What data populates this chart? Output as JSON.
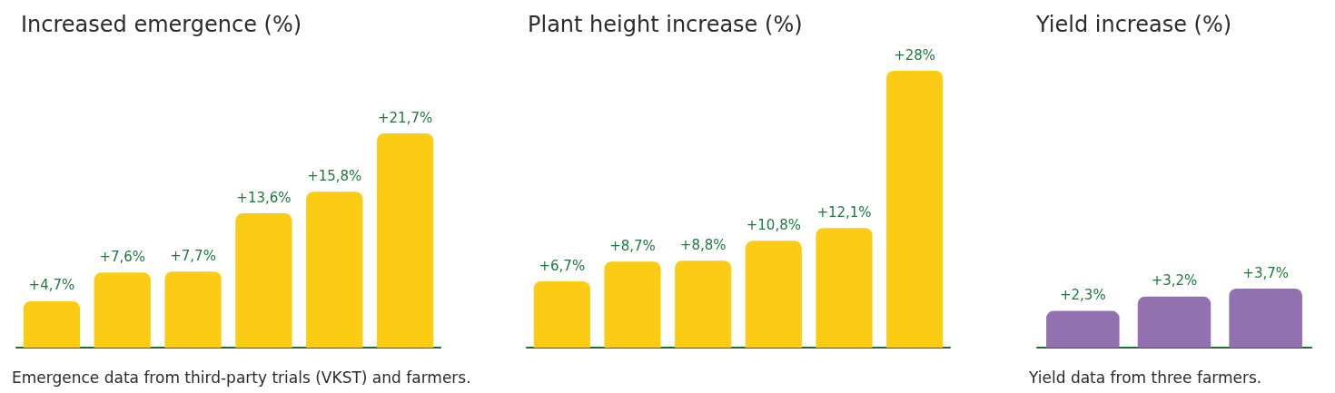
{
  "chart_data": [
    {
      "type": "bar",
      "title": "Increased emergence (%)",
      "categories": [
        null,
        null,
        null,
        null,
        null,
        null
      ],
      "values": [
        4.7,
        7.6,
        7.7,
        13.6,
        15.8,
        21.7
      ],
      "color": "#fccc14",
      "value_labels": [
        "+4,7%",
        "+7,6%",
        "+7,7%",
        "+13,6%",
        "+15,8%",
        "+21,7%"
      ],
      "annotations": [
        "Emergence data from third-party trials (VKST) and farmers."
      ]
    },
    {
      "type": "bar",
      "title": "Plant height increase (%)",
      "categories": [
        null,
        null,
        null,
        null,
        null,
        null
      ],
      "values": [
        6.7,
        8.7,
        8.8,
        10.8,
        12.1,
        28
      ],
      "color": "#fccc14",
      "value_labels": [
        "+6,7%",
        "+8,7%",
        "+8,8%",
        "+10,8%",
        "+12,1%",
        "+28%"
      ]
    },
    {
      "type": "bar",
      "title": "Yield increase (%)",
      "categories": [
        null,
        null,
        null
      ],
      "values": [
        2.3,
        3.2,
        3.7
      ],
      "color": "#9370b0",
      "value_labels": [
        "+2,3%",
        "+3,2%",
        "+3,7%"
      ],
      "annotations": [
        "Yield data from three farmers."
      ]
    }
  ]
}
